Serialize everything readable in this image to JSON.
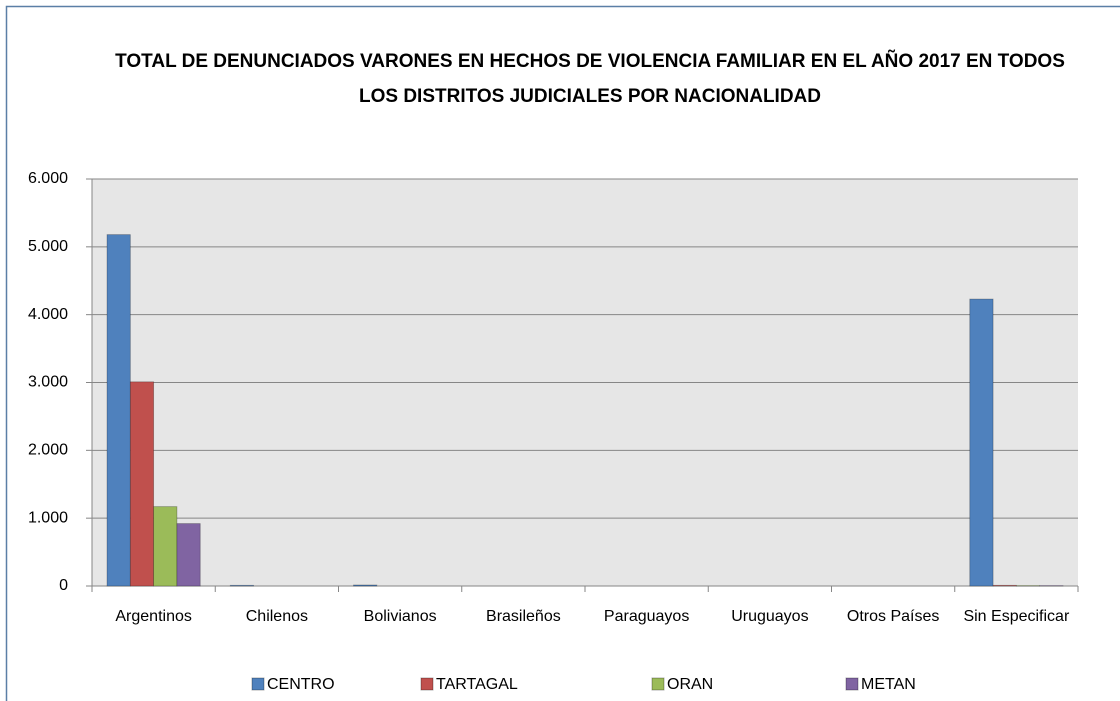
{
  "chart_data": {
    "type": "bar",
    "title": "TOTAL DE DENUNCIADOS VARONES EN HECHOS DE VIOLENCIA FAMILIAR EN EL AÑO 2017 EN TODOS LOS DISTRITOS JUDICIALES POR NACIONALIDAD",
    "categories": [
      "Argentinos",
      "Chilenos",
      "Bolivianos",
      "Brasileños",
      "Paraguayos",
      "Uruguayos",
      "Otros Países",
      "Sin Especificar"
    ],
    "series": [
      {
        "name": "CENTRO",
        "color": "#4f81bd",
        "values": [
          5180,
          10,
          15,
          0,
          0,
          0,
          0,
          4230
        ]
      },
      {
        "name": "TARTAGAL",
        "color": "#c0504d",
        "values": [
          3010,
          0,
          0,
          0,
          0,
          0,
          0,
          10
        ]
      },
      {
        "name": "ORAN",
        "color": "#9bbb59",
        "values": [
          1170,
          0,
          0,
          0,
          0,
          0,
          0,
          5
        ]
      },
      {
        "name": "METAN",
        "color": "#8064a2",
        "values": [
          920,
          0,
          0,
          0,
          0,
          0,
          0,
          5
        ]
      }
    ],
    "ylim": [
      0,
      6000
    ],
    "yticks": [
      0,
      {
        "value": 1000,
        "label": "1.000"
      },
      {
        "value": 2000,
        "label": "2.000"
      },
      {
        "value": 3000,
        "label": "3.000"
      },
      {
        "value": 4000,
        "label": "4.000"
      },
      {
        "value": 5000,
        "label": "5.000"
      },
      {
        "value": 6000,
        "label": "6.000"
      }
    ],
    "grid": true,
    "legend": "bottom"
  }
}
